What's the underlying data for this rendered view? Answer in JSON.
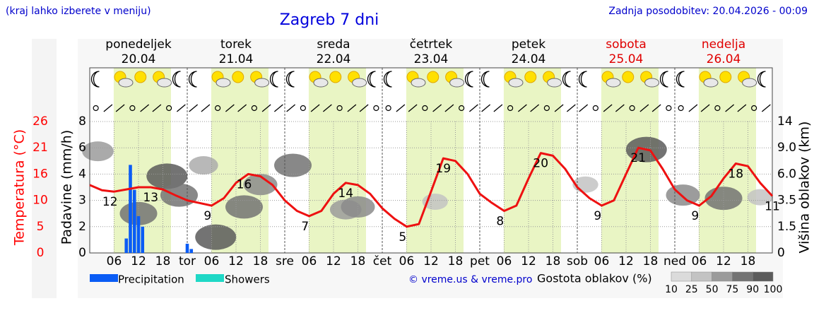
{
  "header": {
    "note": "(kraj lahko izberete v meniju)",
    "updated": "Zadnja posodobitev: 20.04.2026 - 00:09"
  },
  "chart_data": {
    "type": "meteogram",
    "title": "Zagreb 7 dni",
    "days": [
      {
        "name": "ponedeljek",
        "date": "20.04",
        "color": "#000000"
      },
      {
        "name": "torek",
        "date": "21.04",
        "color": "#000000"
      },
      {
        "name": "sreda",
        "date": "22.04",
        "color": "#000000"
      },
      {
        "name": "četrtek",
        "date": "23.04",
        "color": "#000000"
      },
      {
        "name": "petek",
        "date": "24.04",
        "color": "#000000"
      },
      {
        "name": "sobota",
        "date": "25.04",
        "color": "#e00000"
      },
      {
        "name": "nedelja",
        "date": "26.04",
        "color": "#e00000"
      }
    ],
    "xlim": [
      0,
      168
    ],
    "xticks": [
      {
        "value": 6,
        "label": "06"
      },
      {
        "value": 12,
        "label": "12"
      },
      {
        "value": 18,
        "label": "18"
      },
      {
        "value": 24,
        "label": "tor"
      },
      {
        "value": 30,
        "label": "06"
      },
      {
        "value": 36,
        "label": "12"
      },
      {
        "value": 42,
        "label": "18"
      },
      {
        "value": 48,
        "label": "sre"
      },
      {
        "value": 54,
        "label": "06"
      },
      {
        "value": 60,
        "label": "12"
      },
      {
        "value": 66,
        "label": "18"
      },
      {
        "value": 72,
        "label": "čet"
      },
      {
        "value": 78,
        "label": "06"
      },
      {
        "value": 84,
        "label": "12"
      },
      {
        "value": 90,
        "label": "18"
      },
      {
        "value": 96,
        "label": "pet"
      },
      {
        "value": 102,
        "label": "06"
      },
      {
        "value": 108,
        "label": "12"
      },
      {
        "value": 114,
        "label": "18"
      },
      {
        "value": 120,
        "label": "sob"
      },
      {
        "value": 126,
        "label": "06"
      },
      {
        "value": 132,
        "label": "12"
      },
      {
        "value": 138,
        "label": "18"
      },
      {
        "value": 144,
        "label": "ned"
      },
      {
        "value": 150,
        "label": "06"
      },
      {
        "value": 156,
        "label": "12"
      },
      {
        "value": 162,
        "label": "18"
      }
    ],
    "precip_axis": {
      "label": "Padavine (mm/h)",
      "ylim": [
        0,
        8
      ],
      "yticks": [
        0,
        2,
        3,
        4,
        6,
        8
      ]
    },
    "temp_axis": {
      "label": "Temperatura (°C)",
      "color": "#ff0000",
      "ylim": [
        0,
        26
      ],
      "yticks": [
        0,
        5,
        10,
        16,
        21,
        26
      ]
    },
    "cloud_axis": {
      "label": "Višina oblakov (km)",
      "ylim": [
        0,
        14
      ],
      "yticks": [
        0,
        1.5,
        3.5,
        {
          "value": 6,
          "label": "6.0"
        },
        {
          "value": 9,
          "label": "9.0"
        },
        14
      ]
    },
    "grid": true,
    "daylight": {
      "color": "#e9f5c4",
      "spans": [
        [
          5.9,
          20.0
        ],
        [
          29.9,
          44.0
        ],
        [
          53.9,
          68.0
        ],
        [
          77.9,
          92.0
        ],
        [
          101.9,
          116.0
        ],
        [
          125.9,
          140.0
        ],
        [
          149.9,
          164.0
        ]
      ]
    },
    "temperature": {
      "color": "#ee1111",
      "x": [
        0,
        3,
        6,
        9,
        12,
        15,
        18,
        21,
        24,
        27,
        30,
        33,
        36,
        39,
        42,
        45,
        48,
        51,
        54,
        57,
        60,
        63,
        66,
        69,
        72,
        75,
        78,
        81,
        84,
        87,
        90,
        93,
        96,
        99,
        102,
        105,
        108,
        111,
        114,
        117,
        120,
        123,
        126,
        129,
        132,
        135,
        138,
        141,
        144,
        147,
        150,
        153,
        156,
        159,
        162,
        165,
        168
      ],
      "values": [
        13.5,
        12.3,
        12.0,
        12.5,
        13,
        13,
        12.5,
        11.2,
        10,
        9.5,
        9,
        10.5,
        14,
        16,
        15.5,
        13.5,
        10,
        8,
        7,
        8,
        11.5,
        14,
        13.5,
        11.5,
        8.5,
        6.5,
        5,
        5.5,
        12,
        19,
        18.5,
        16,
        11.5,
        9.5,
        8,
        9,
        15,
        20,
        19.5,
        17,
        13,
        10.5,
        9,
        10,
        16,
        21,
        20.5,
        17,
        12.5,
        10,
        9,
        11,
        15,
        18,
        17.5,
        14,
        11
      ]
    },
    "extremes": {
      "x": [
        5,
        15,
        29,
        38,
        53,
        63,
        77,
        87,
        101,
        111,
        125,
        135,
        149,
        159,
        168
      ],
      "values": [
        12,
        13,
        9,
        16,
        7,
        14,
        5,
        19,
        8,
        20,
        9,
        21,
        9,
        18,
        11
      ]
    },
    "precipitation": {
      "name": "Precipitation",
      "color": "#0a5cf5",
      "x": [
        9,
        10,
        11,
        12,
        13,
        24,
        25
      ],
      "values": [
        1.1,
        4.7,
        3.4,
        2.4,
        2.0,
        0.7,
        0.3
      ]
    },
    "showers": {
      "name": "Showers",
      "color": "#1fd8c6",
      "x": [],
      "values": []
    },
    "clouds": {
      "x": [
        2,
        12,
        19,
        22,
        28,
        31,
        38,
        42,
        50,
        63,
        66,
        85,
        122,
        137,
        146,
        156,
        165
      ],
      "height": [
        8.6,
        2.5,
        5.8,
        4,
        7,
        0.9,
        3,
        5,
        7,
        2.8,
        3,
        3.4,
        5,
        8.8,
        4,
        3.7,
        3.8
      ],
      "density": [
        50,
        75,
        90,
        75,
        40,
        90,
        75,
        60,
        75,
        50,
        60,
        25,
        25,
        90,
        60,
        75,
        25
      ]
    },
    "density_legend": {
      "label": "Gostota oblakov (%)",
      "levels": [
        10,
        25,
        50,
        75,
        90,
        100
      ]
    },
    "credit": "© vreme.us & vreme.pro"
  }
}
